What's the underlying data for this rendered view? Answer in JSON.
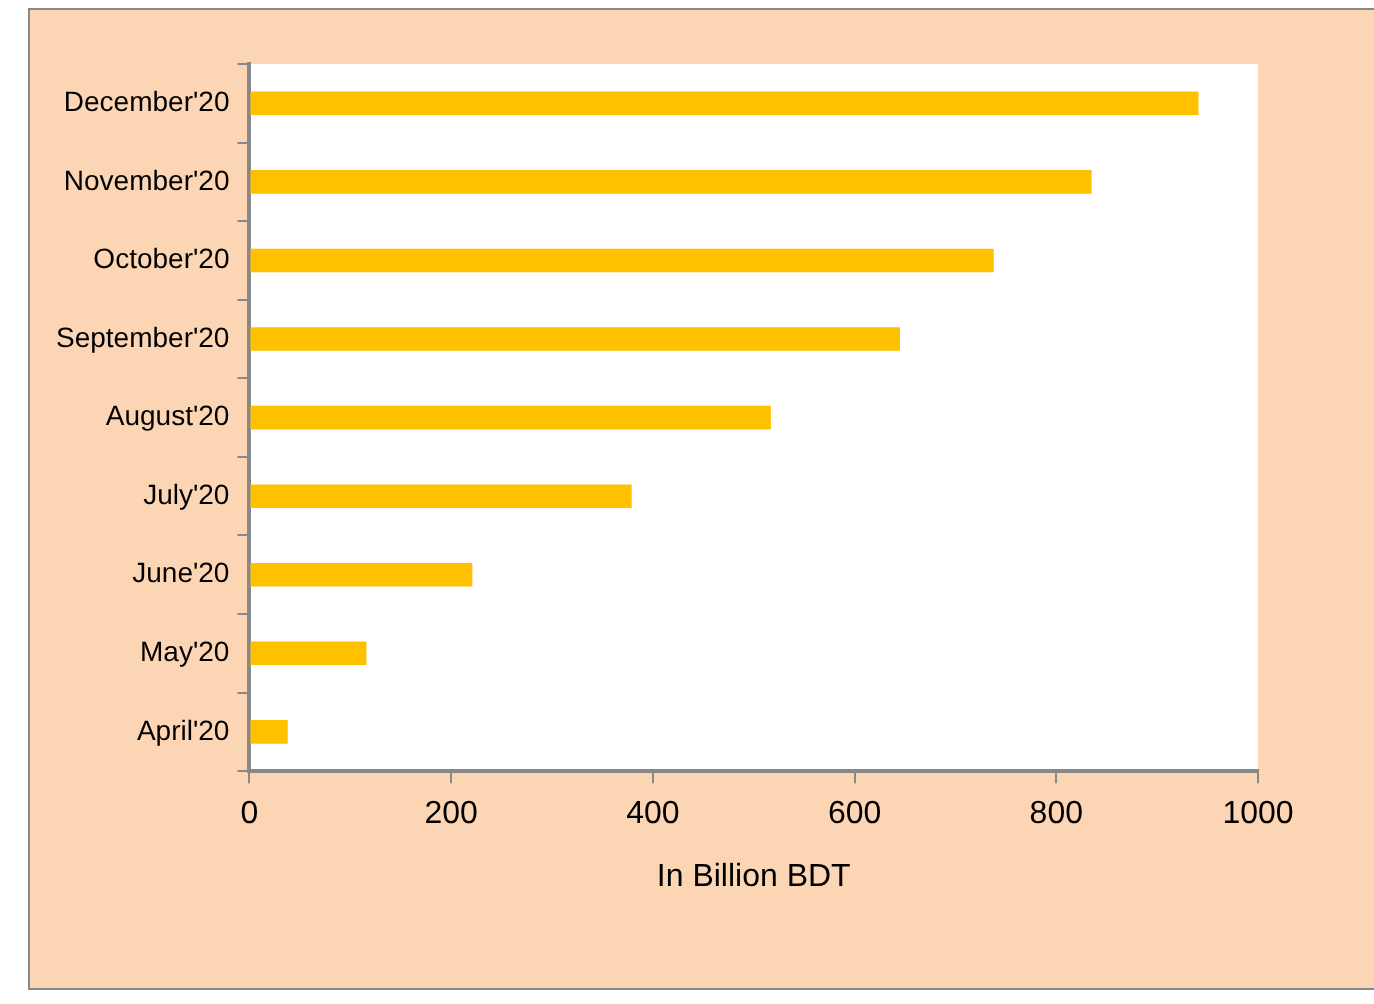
{
  "chart_data": {
    "type": "bar",
    "orientation": "horizontal",
    "xlabel": "In Billion BDT",
    "categories": [
      "December'20",
      "November'20",
      "October'20",
      "September'20",
      "August'20",
      "July'20",
      "June'20",
      "May'20",
      "April'20"
    ],
    "values": [
      941,
      835,
      738,
      645,
      517,
      379,
      221,
      116,
      38
    ],
    "color": "#ffc000",
    "xlim": [
      0,
      1000
    ],
    "xticks": [
      0,
      200,
      400,
      600,
      800,
      1000
    ],
    "grid": false,
    "legend": false
  }
}
